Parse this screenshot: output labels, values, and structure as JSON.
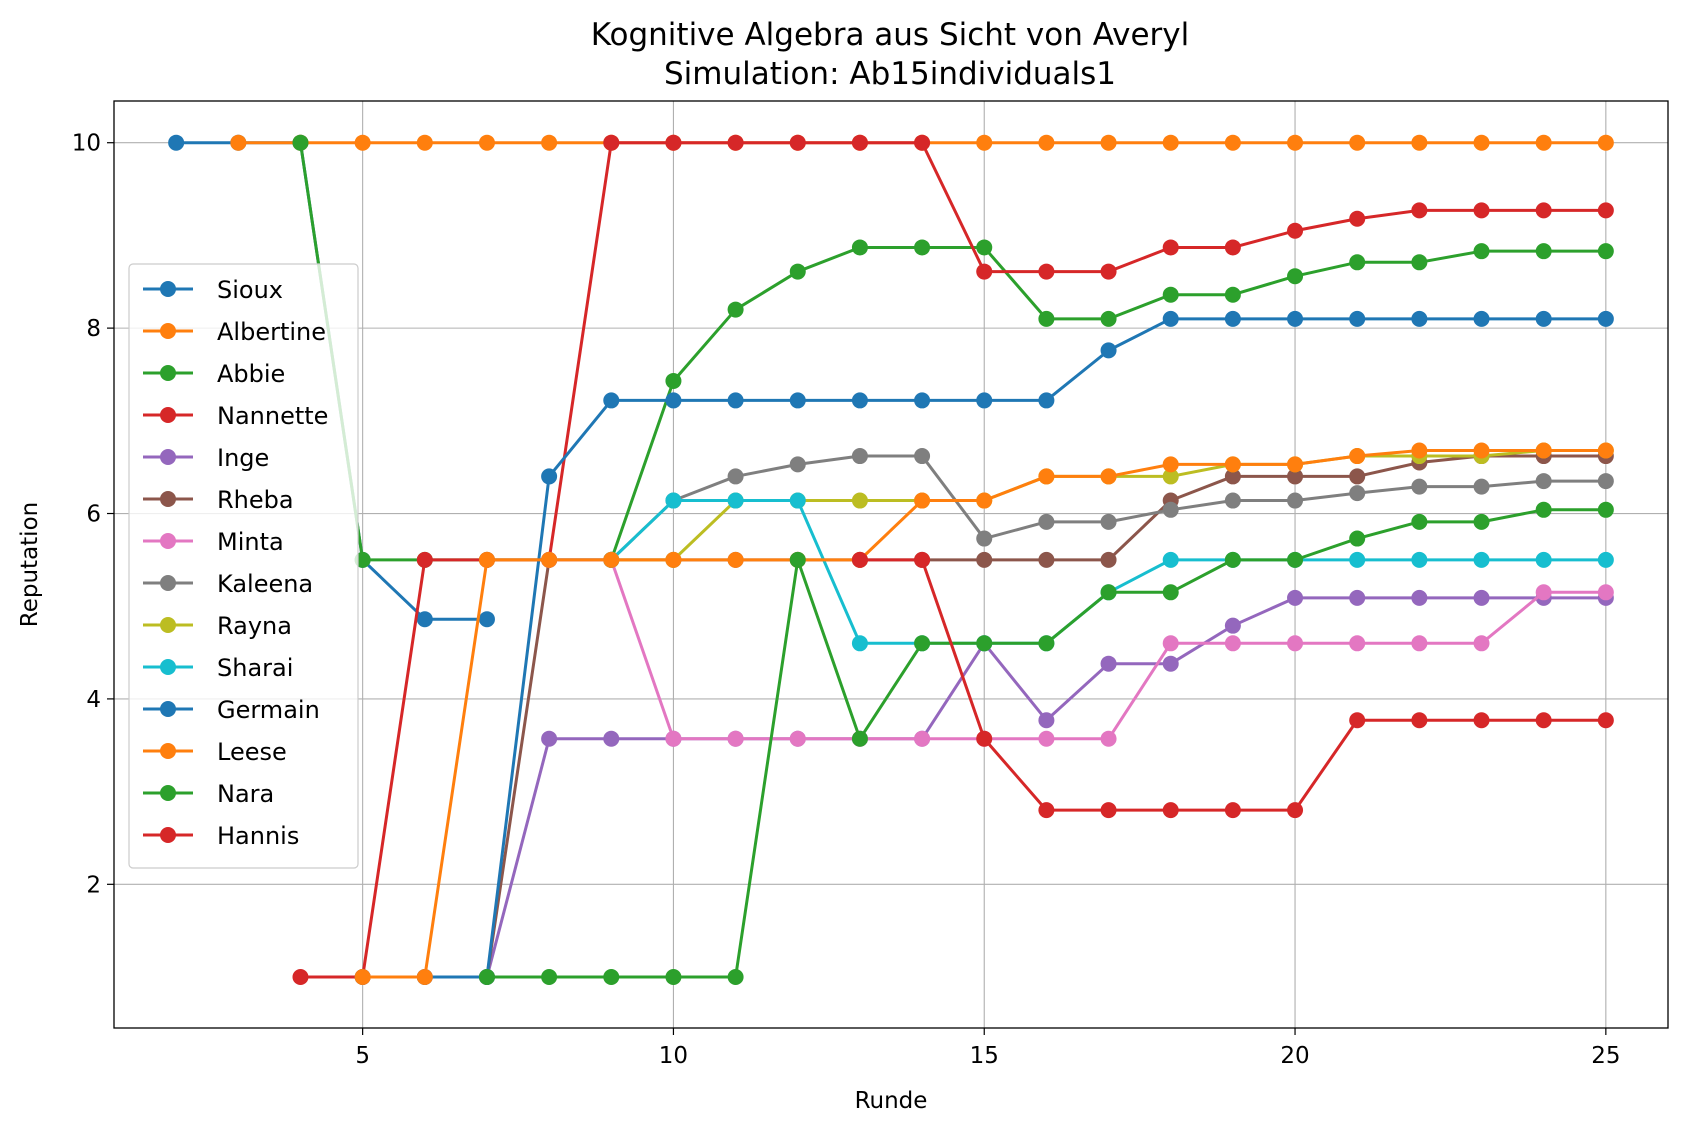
{
  "chart_data": {
    "type": "line",
    "title": "Kognitive Algebra aus Sicht von Averyl",
    "subtitle": "Simulation: Ab15individuals1",
    "xlabel": "Runde",
    "ylabel": "Reputation",
    "xlim": [
      1,
      26
    ],
    "ylim": [
      0.45,
      10.45
    ],
    "xticks": [
      5,
      10,
      15,
      20,
      25
    ],
    "yticks": [
      2,
      4,
      6,
      8,
      10
    ],
    "grid": true,
    "legend_position": "center-left",
    "series": [
      {
        "name": "Sioux",
        "color": "#1f77b4",
        "x": [
          2,
          3,
          4,
          5,
          6,
          7
        ],
        "y": [
          10,
          10,
          10,
          5.5,
          4.86,
          4.86
        ]
      },
      {
        "name": "Albertine",
        "color": "#ff7f0e",
        "x": [
          3,
          4,
          5,
          6,
          7,
          8,
          9,
          10,
          11,
          12,
          13,
          14,
          15,
          16,
          17,
          18,
          19,
          20,
          21,
          22,
          23,
          24,
          25
        ],
        "y": [
          10,
          10,
          10,
          10,
          10,
          10,
          10,
          10,
          10,
          10,
          10,
          10,
          10,
          10,
          10,
          10,
          10,
          10,
          10,
          10,
          10,
          10,
          10
        ]
      },
      {
        "name": "Abbie",
        "color": "#2ca02c",
        "x": [
          4,
          5,
          6,
          7,
          8,
          9,
          10,
          11,
          12,
          13,
          14,
          15,
          16,
          17,
          18,
          19,
          20,
          21,
          22,
          23,
          24,
          25
        ],
        "y": [
          10,
          5.5,
          5.5,
          5.5,
          5.5,
          5.5,
          7.43,
          8.2,
          8.61,
          8.87,
          8.87,
          8.87,
          8.1,
          8.1,
          8.36,
          8.36,
          8.56,
          8.71,
          8.71,
          8.83,
          8.83,
          8.83
        ]
      },
      {
        "name": "Nannette",
        "color": "#d62728",
        "x": [
          4,
          5,
          6,
          7,
          8,
          9,
          10,
          11,
          12,
          13,
          14,
          15,
          16,
          17,
          18,
          19,
          20,
          21,
          22,
          23,
          24,
          25
        ],
        "y": [
          1,
          1,
          5.5,
          5.5,
          5.5,
          10,
          10,
          10,
          10,
          10,
          10,
          8.61,
          8.61,
          8.61,
          8.87,
          8.87,
          9.05,
          9.18,
          9.27,
          9.27,
          9.27,
          9.27
        ]
      },
      {
        "name": "Inge",
        "color": "#9467bd",
        "x": [
          6,
          7,
          8,
          9,
          10,
          11,
          12,
          13,
          14,
          15,
          16,
          17,
          18,
          19,
          20,
          21,
          22,
          23,
          24,
          25
        ],
        "y": [
          1,
          1,
          3.57,
          3.57,
          3.57,
          3.57,
          3.57,
          3.57,
          3.57,
          4.6,
          3.77,
          4.38,
          4.38,
          4.79,
          5.09,
          5.09,
          5.09,
          5.09,
          5.09,
          5.09
        ]
      },
      {
        "name": "Rheba",
        "color": "#8c564b",
        "x": [
          7,
          8,
          9,
          10,
          11,
          12,
          13,
          14,
          15,
          16,
          17,
          18,
          19,
          20,
          21,
          22,
          23,
          24,
          25
        ],
        "y": [
          1,
          5.5,
          5.5,
          5.5,
          5.5,
          5.5,
          5.5,
          5.5,
          5.5,
          5.5,
          5.5,
          6.14,
          6.4,
          6.4,
          6.4,
          6.55,
          6.62,
          6.62,
          6.62
        ]
      },
      {
        "name": "Minta",
        "color": "#e377c2",
        "x": [
          8,
          9,
          10,
          11,
          12,
          13,
          14,
          15,
          16,
          17,
          18,
          19,
          20,
          21,
          22,
          23,
          24,
          25
        ],
        "y": [
          5.5,
          5.5,
          3.57,
          3.57,
          3.57,
          3.57,
          3.57,
          3.57,
          3.57,
          3.57,
          4.6,
          4.6,
          4.6,
          4.6,
          4.6,
          4.6,
          5.15,
          5.15
        ]
      },
      {
        "name": "Kaleena",
        "color": "#7f7f7f",
        "x": [
          9,
          10,
          11,
          12,
          13,
          14,
          15,
          16,
          17,
          18,
          19,
          20,
          21,
          22,
          23,
          24,
          25
        ],
        "y": [
          5.5,
          6.14,
          6.4,
          6.53,
          6.62,
          6.62,
          5.73,
          5.91,
          5.91,
          6.04,
          6.14,
          6.14,
          6.22,
          6.29,
          6.29,
          6.35,
          6.35
        ]
      },
      {
        "name": "Rayna",
        "color": "#bcbd22",
        "x": [
          9,
          10,
          11,
          12,
          13,
          14,
          15,
          16,
          17,
          18,
          19,
          20,
          21,
          22,
          23,
          24,
          25
        ],
        "y": [
          5.5,
          5.5,
          6.14,
          6.14,
          6.14,
          6.14,
          6.14,
          6.4,
          6.4,
          6.4,
          6.53,
          6.53,
          6.62,
          6.62,
          6.62,
          6.68,
          6.68
        ]
      },
      {
        "name": "Sharai",
        "color": "#17becf",
        "x": [
          9,
          10,
          11,
          12,
          13,
          14,
          15,
          16,
          17,
          18,
          19,
          20,
          21,
          22,
          23,
          24,
          25
        ],
        "y": [
          5.5,
          6.14,
          6.14,
          6.14,
          4.6,
          4.6,
          4.6,
          4.6,
          5.15,
          5.5,
          5.5,
          5.5,
          5.5,
          5.5,
          5.5,
          5.5,
          5.5
        ]
      },
      {
        "name": "Germain",
        "color": "#1f77b4",
        "x": [
          5,
          6,
          7,
          8,
          9,
          10,
          11,
          12,
          13,
          14,
          15,
          16,
          17,
          18,
          19,
          20,
          21,
          22,
          23,
          24,
          25
        ],
        "y": [
          1,
          1,
          1,
          6.4,
          7.22,
          7.22,
          7.22,
          7.22,
          7.22,
          7.22,
          7.22,
          7.22,
          7.76,
          8.1,
          8.1,
          8.1,
          8.1,
          8.1,
          8.1,
          8.1,
          8.1
        ]
      },
      {
        "name": "Leese",
        "color": "#ff7f0e",
        "x": [
          5,
          6,
          7,
          8,
          9,
          10,
          11,
          12,
          13,
          14,
          15,
          16,
          17,
          18,
          19,
          20,
          21,
          22,
          23,
          24,
          25
        ],
        "y": [
          1,
          1,
          5.5,
          5.5,
          5.5,
          5.5,
          5.5,
          5.5,
          5.5,
          6.14,
          6.14,
          6.4,
          6.4,
          6.53,
          6.53,
          6.53,
          6.62,
          6.68,
          6.68,
          6.68,
          6.68
        ]
      },
      {
        "name": "Nara",
        "color": "#2ca02c",
        "x": [
          7,
          8,
          9,
          10,
          11,
          12,
          13,
          14,
          15,
          16,
          17,
          18,
          19,
          20,
          21,
          22,
          23,
          24,
          25
        ],
        "y": [
          1,
          1,
          1,
          1,
          1,
          5.5,
          3.57,
          4.6,
          4.6,
          4.6,
          5.15,
          5.15,
          5.5,
          5.5,
          5.73,
          5.91,
          5.91,
          6.04,
          6.04
        ]
      },
      {
        "name": "Hannis",
        "color": "#d62728",
        "x": [
          13,
          14,
          15,
          16,
          17,
          18,
          19,
          20,
          21,
          22,
          23,
          24,
          25
        ],
        "y": [
          5.5,
          5.5,
          3.57,
          2.8,
          2.8,
          2.8,
          2.8,
          2.8,
          3.77,
          3.77,
          3.77,
          3.77,
          3.77
        ]
      }
    ]
  }
}
